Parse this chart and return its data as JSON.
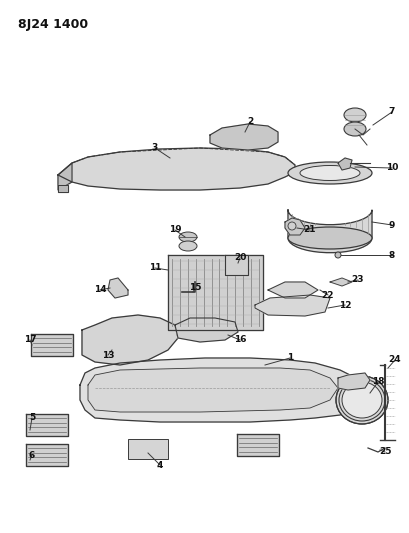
{
  "title": "8J24 1400",
  "bg": "#ffffff",
  "gray": "#3a3a3a",
  "lgray": "#999999",
  "fill_light": "#e0e0e0",
  "fill_mid": "#cccccc",
  "fill_dark": "#aaaaaa"
}
